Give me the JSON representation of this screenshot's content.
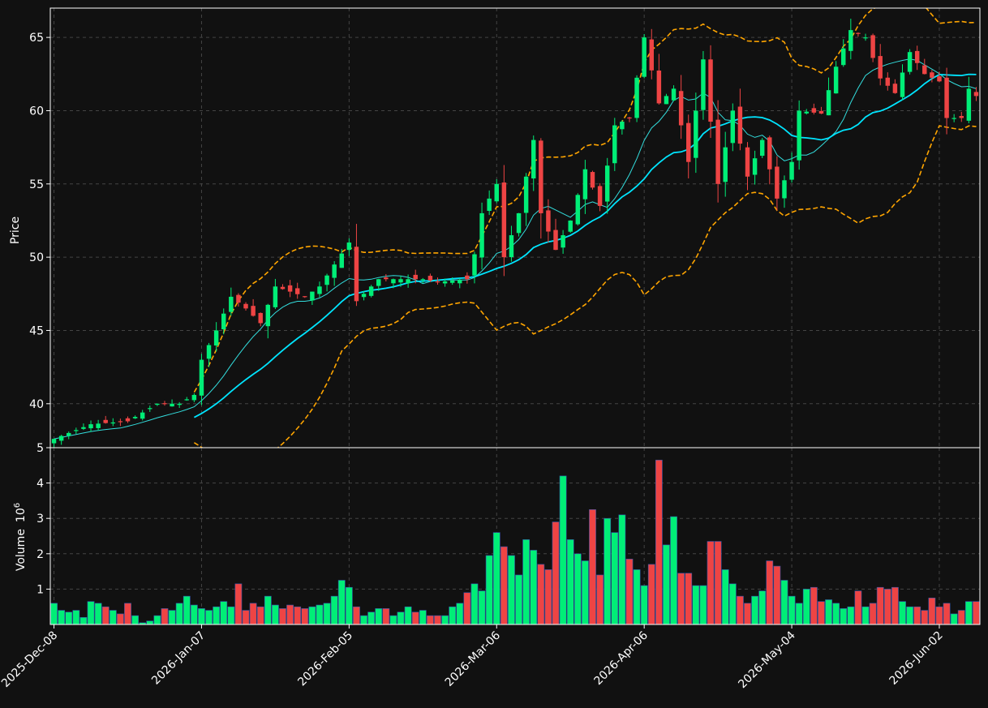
{
  "chart_data": {
    "type": "candlestick",
    "price_panel": {
      "ylabel": "Price",
      "ylim": [
        37.0,
        67.0
      ],
      "yticks": [
        40,
        45,
        50,
        55,
        60,
        65
      ]
    },
    "volume_panel": {
      "ylabel": "Volume",
      "yexp": "6",
      "ylim": [
        0,
        5
      ],
      "yticks": [
        1,
        2,
        3,
        4,
        5
      ]
    },
    "x_range": [
      -0.5,
      125.5
    ],
    "x_ticks": [
      {
        "i": 0,
        "label": "2025-Dec-08"
      },
      {
        "i": 20,
        "label": "2026-Jan-07"
      },
      {
        "i": 40,
        "label": "2026-Feb-05"
      },
      {
        "i": 60,
        "label": "2026-Mar-06"
      },
      {
        "i": 80,
        "label": "2026-Apr-06"
      },
      {
        "i": 100,
        "label": "2026-May-04"
      },
      {
        "i": 120,
        "label": "2026-Jun-02"
      }
    ],
    "grid": true,
    "colors": {
      "background": "#111111",
      "up": "#00ee77",
      "down": "#ee4444",
      "wick_up": "#00ee77",
      "wick_down": "#ee4444",
      "volume_edge": "#3355aa",
      "bollinger": "#ffa500",
      "ma_fast": "#33dddd",
      "ma_slow": "#00e5ff",
      "grid": "#444444"
    },
    "anchors": [
      [
        0,
        37.6
      ],
      [
        5,
        38.6
      ],
      [
        10,
        38.8
      ],
      [
        14,
        40.0
      ],
      [
        17,
        40.0
      ],
      [
        19,
        40.6
      ],
      [
        20,
        43.0
      ],
      [
        22,
        45.0
      ],
      [
        24,
        47.3
      ],
      [
        26,
        46.5
      ],
      [
        28,
        45.5
      ],
      [
        30,
        48.0
      ],
      [
        34,
        47.3
      ],
      [
        36,
        48.0
      ],
      [
        40,
        51.0
      ],
      [
        41,
        47.0
      ],
      [
        44,
        48.5
      ],
      [
        50,
        48.5
      ],
      [
        52,
        48.3
      ],
      [
        56,
        48.5
      ],
      [
        57,
        50.2
      ],
      [
        58,
        53.0
      ],
      [
        60,
        55.0
      ],
      [
        61,
        50.0
      ],
      [
        63,
        53.0
      ],
      [
        65,
        58.0
      ],
      [
        66,
        53.0
      ],
      [
        68,
        50.5
      ],
      [
        70,
        52.5
      ],
      [
        72,
        56.0
      ],
      [
        74,
        53.5
      ],
      [
        76,
        59.0
      ],
      [
        78,
        59.5
      ],
      [
        80,
        65.0
      ],
      [
        82,
        60.5
      ],
      [
        84,
        61.5
      ],
      [
        86,
        56.5
      ],
      [
        88,
        63.5
      ],
      [
        90,
        55.0
      ],
      [
        92,
        60.0
      ],
      [
        94,
        55.5
      ],
      [
        96,
        58.0
      ],
      [
        98,
        54.0
      ],
      [
        100,
        56.5
      ],
      [
        101,
        60.0
      ],
      [
        104,
        59.8
      ],
      [
        106,
        63.0
      ],
      [
        108,
        65.5
      ],
      [
        110,
        65.0
      ],
      [
        112,
        62.2
      ],
      [
        114,
        61.2
      ],
      [
        116,
        64.0
      ],
      [
        118,
        62.5
      ],
      [
        120,
        62.0
      ],
      [
        121,
        59.5
      ],
      [
        123,
        59.5
      ],
      [
        124,
        61.5
      ],
      [
        125,
        61.0
      ]
    ],
    "volumes": [
      0.6,
      0.4,
      0.35,
      0.4,
      0.2,
      0.65,
      0.6,
      0.5,
      0.4,
      0.3,
      0.6,
      0.25,
      0.05,
      0.1,
      0.25,
      0.45,
      0.4,
      0.6,
      0.8,
      0.55,
      0.45,
      0.4,
      0.5,
      0.65,
      0.5,
      1.15,
      0.4,
      0.6,
      0.5,
      0.8,
      0.55,
      0.45,
      0.55,
      0.5,
      0.45,
      0.5,
      0.55,
      0.6,
      0.8,
      1.25,
      1.05,
      0.5,
      0.25,
      0.35,
      0.45,
      0.45,
      0.25,
      0.35,
      0.5,
      0.35,
      0.4,
      0.25,
      0.25,
      0.25,
      0.5,
      0.6,
      0.9,
      1.15,
      0.95,
      1.95,
      2.6,
      2.2,
      1.95,
      1.4,
      2.4,
      2.1,
      1.7,
      1.55,
      2.9,
      4.2,
      2.4,
      2.0,
      1.8,
      3.25,
      1.4,
      3.0,
      2.6,
      3.1,
      1.85,
      1.55,
      1.1,
      1.7,
      4.65,
      2.25,
      3.05,
      1.45,
      1.45,
      1.1,
      1.1,
      2.35,
      2.35,
      1.55,
      1.15,
      0.8,
      0.6,
      0.8,
      0.95,
      1.8,
      1.65,
      1.25,
      0.8,
      0.6,
      1.0,
      1.05,
      0.65,
      0.7,
      0.6,
      0.45,
      0.5,
      0.95,
      0.5,
      0.6,
      1.05,
      1.0,
      1.05,
      0.65,
      0.5,
      0.5,
      0.4,
      0.75,
      0.5,
      0.6,
      0.3,
      0.4,
      0.65,
      0.65
    ],
    "series": [
      {
        "name": "",
        "kind": "bollinger-upper"
      },
      {
        "name": "",
        "kind": "bollinger-lower"
      },
      {
        "name": "",
        "kind": "moving-average-fast"
      },
      {
        "name": "",
        "kind": "moving-average-slow"
      }
    ]
  }
}
